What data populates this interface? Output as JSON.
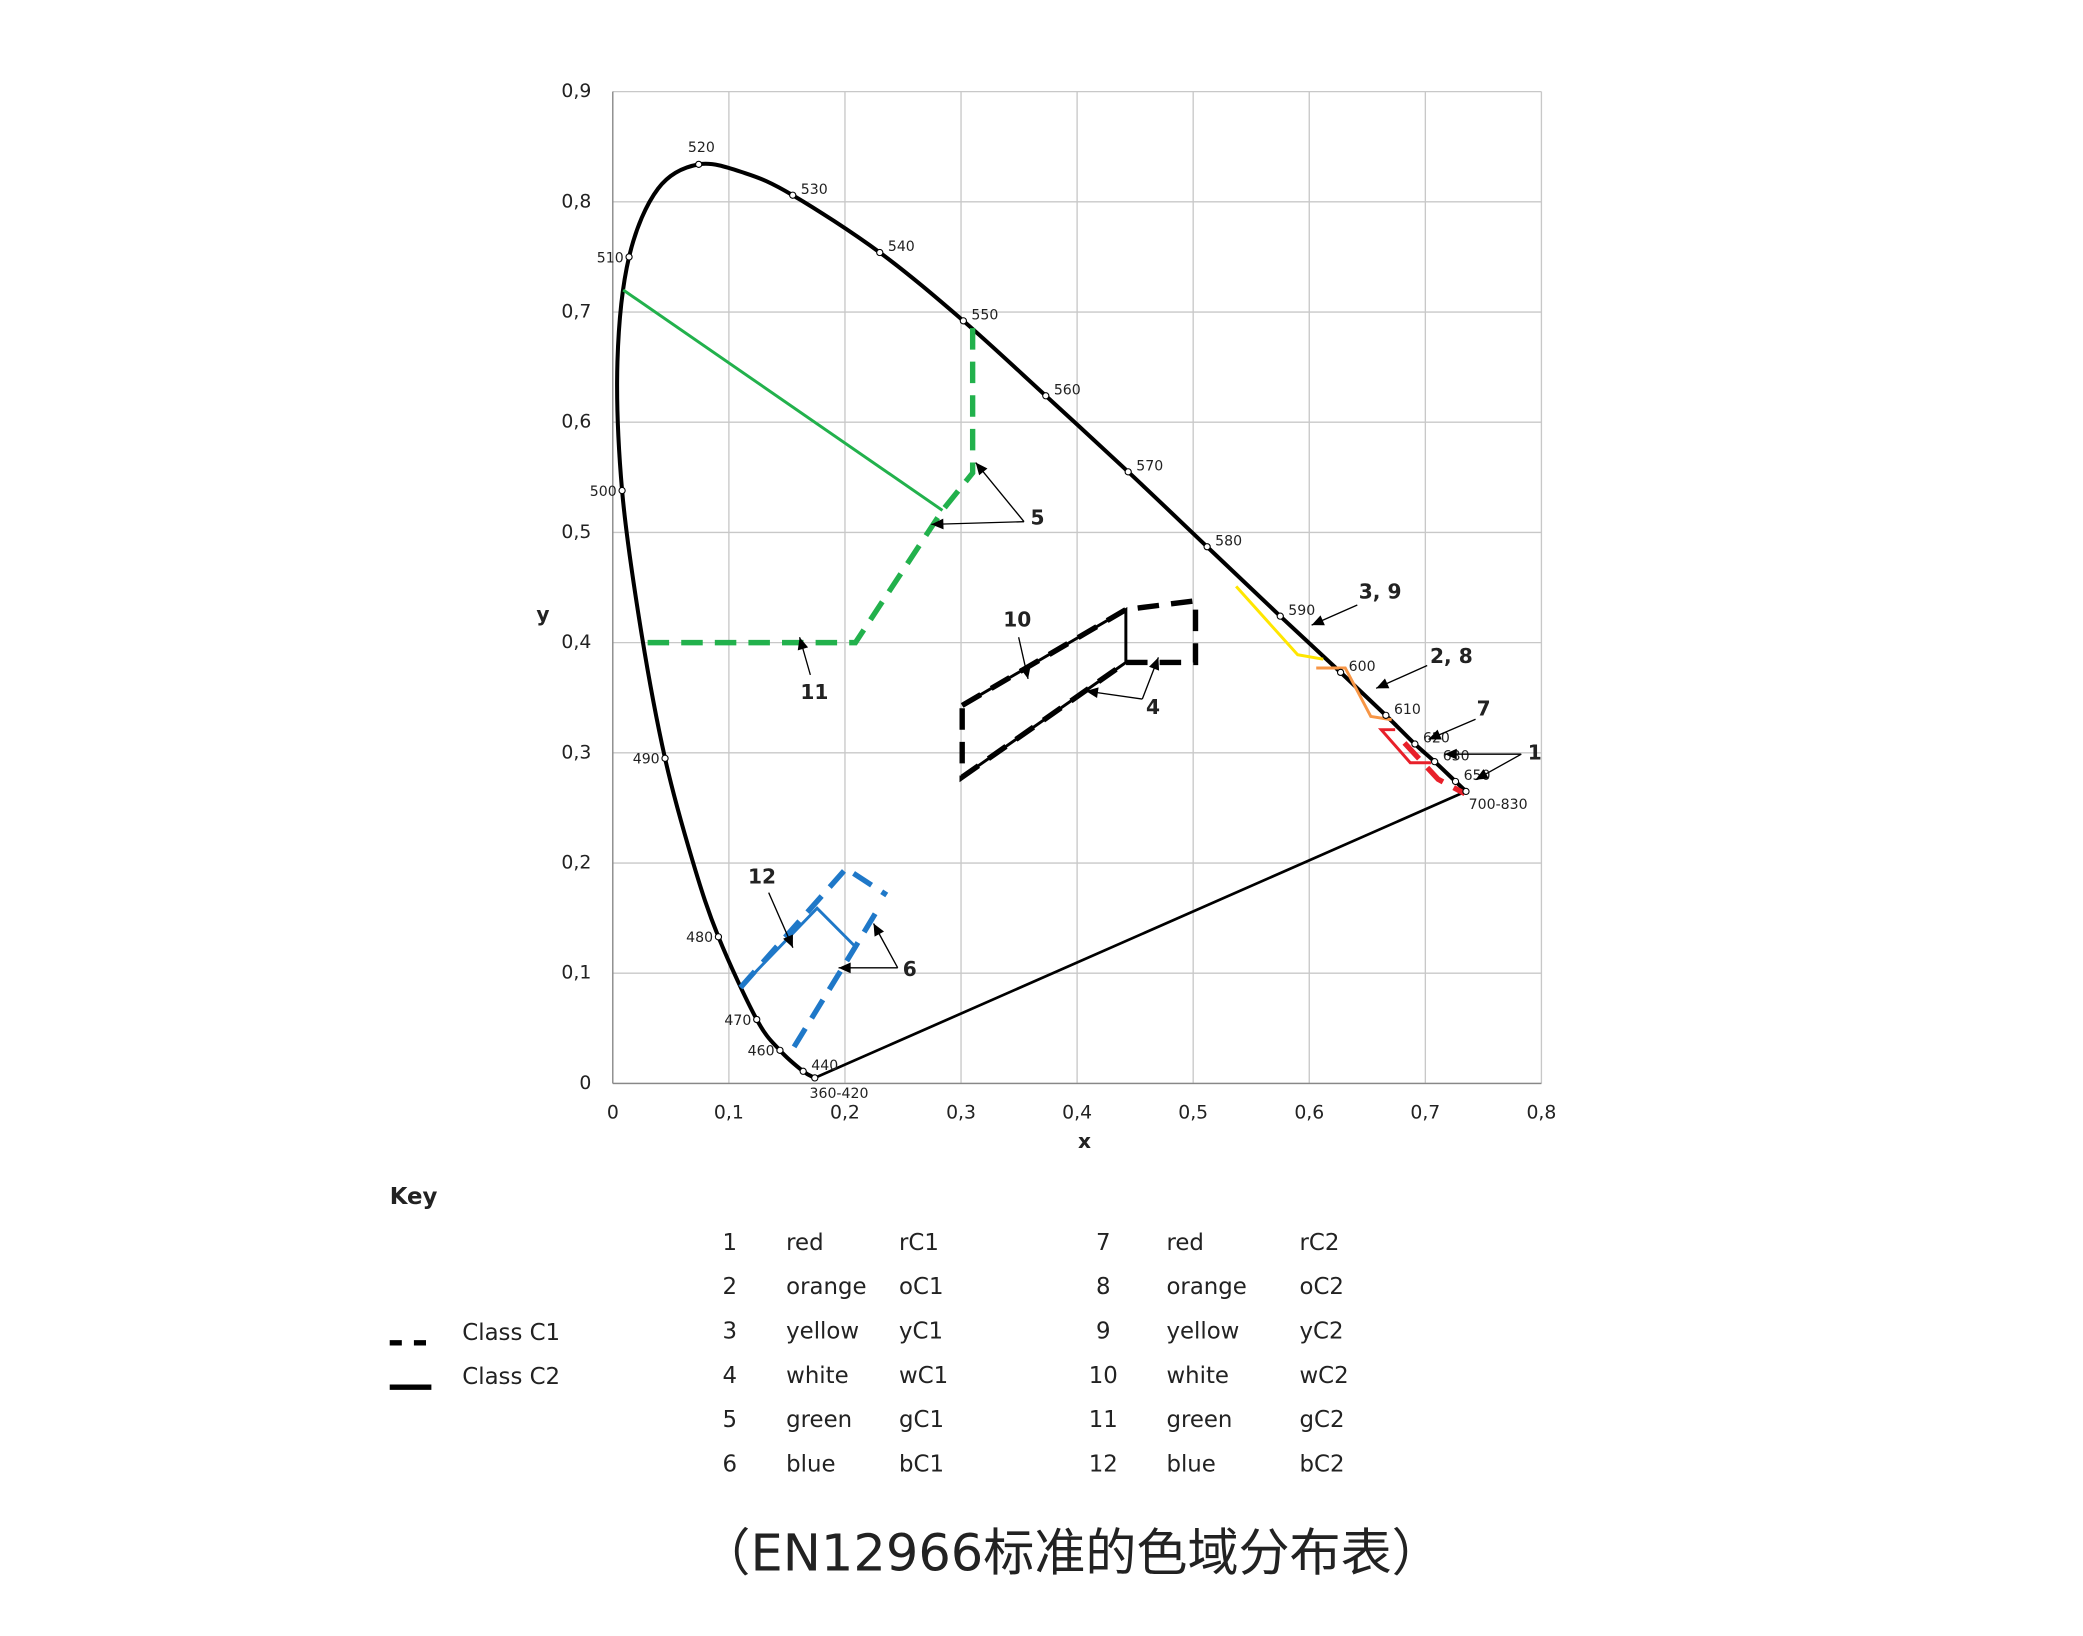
{
  "chart_data": {
    "type": "chromaticity",
    "xlabel": "x",
    "ylabel": "y",
    "xlim": [
      0,
      0.8
    ],
    "ylim": [
      0,
      0.9
    ],
    "xticks": [
      0,
      {
        "value": 0.1,
        "label": "0,1"
      },
      {
        "value": 0.2,
        "label": "0,2"
      },
      {
        "value": 0.3,
        "label": "0,3"
      },
      {
        "value": 0.4,
        "label": "0,4"
      },
      {
        "value": 0.5,
        "label": "0,5"
      },
      {
        "value": 0.6,
        "label": "0,6"
      },
      {
        "value": 0.7,
        "label": "0,7"
      },
      {
        "value": 0.8,
        "label": "0,8"
      }
    ],
    "yticks": [
      0,
      {
        "value": 0.1,
        "label": "0,1"
      },
      {
        "value": 0.2,
        "label": "0,2"
      },
      {
        "value": 0.3,
        "label": "0,3"
      },
      {
        "value": 0.4,
        "label": "0,4"
      },
      {
        "value": 0.5,
        "label": "0,5"
      },
      {
        "value": 0.6,
        "label": "0,6"
      },
      {
        "value": 0.7,
        "label": "0,7"
      },
      {
        "value": 0.8,
        "label": "0,8"
      },
      {
        "value": 0.9,
        "label": "0,9"
      }
    ],
    "grid": true,
    "locus": {
      "color": "#000000",
      "labels": [
        "360-420",
        "440",
        "460",
        "470",
        "480",
        null,
        "490",
        null,
        "500",
        null,
        "510",
        null,
        "520",
        null,
        "530",
        "540",
        "550",
        "560",
        "570",
        "580",
        "590",
        "600",
        "610",
        "620",
        "630",
        "650",
        "700-830"
      ],
      "x": [
        0.174,
        0.164,
        0.144,
        0.124,
        0.091,
        0.069,
        0.045,
        0.024,
        0.008,
        0.004,
        0.014,
        0.039,
        0.074,
        0.114,
        0.155,
        0.23,
        0.302,
        0.373,
        0.444,
        0.512,
        0.575,
        0.627,
        0.666,
        0.691,
        0.708,
        0.726,
        0.735
      ],
      "y": [
        0.005,
        0.011,
        0.03,
        0.058,
        0.133,
        0.201,
        0.295,
        0.413,
        0.538,
        0.655,
        0.75,
        0.812,
        0.834,
        0.826,
        0.806,
        0.754,
        0.692,
        0.624,
        0.555,
        0.487,
        0.424,
        0.373,
        0.334,
        0.308,
        0.292,
        0.274,
        0.265
      ]
    },
    "regions": [
      {
        "color": "#22b14c",
        "style": "dashed",
        "x": [
          0.03,
          0.209,
          0.284,
          0.31,
          0.31
        ],
        "y": [
          0.4,
          0.4,
          0.52,
          0.554,
          0.688
        ]
      },
      {
        "color": "#22b14c",
        "style": "solid",
        "x": [
          0.009,
          0.284
        ],
        "y": [
          0.72,
          0.52
        ]
      },
      {
        "color": "#ffe600",
        "style": "solid",
        "x": [
          0.537,
          0.59,
          0.612
        ],
        "y": [
          0.451,
          0.389,
          0.385
        ]
      },
      {
        "color": "#f79646",
        "style": "solid",
        "x": [
          0.606,
          0.631,
          0.653,
          0.671
        ],
        "y": [
          0.377,
          0.377,
          0.333,
          0.33
        ]
      },
      {
        "color": "#e8202a",
        "style": "solid",
        "x": [
          0.674,
          0.662,
          0.687,
          0.705
        ],
        "y": [
          0.321,
          0.321,
          0.291,
          0.291
        ]
      },
      {
        "color": "#e8202a",
        "style": "dashed",
        "x": [
          0.682,
          0.711,
          0.734
        ],
        "y": [
          0.309,
          0.276,
          0.263
        ]
      },
      {
        "color": "#000000",
        "style": "dashed",
        "x": [
          0.301,
          0.442,
          0.502,
          0.502,
          0.442,
          0.301,
          0.301
        ],
        "y": [
          0.343,
          0.43,
          0.438,
          0.382,
          0.382,
          0.278,
          0.343
        ]
      },
      {
        "color": "#000000",
        "style": "solid",
        "x": [
          0.301,
          0.442,
          0.442,
          0.301
        ],
        "y": [
          0.343,
          0.43,
          0.382,
          0.278
        ]
      },
      {
        "color": "#1f78c8",
        "style": "dashed",
        "x": [
          0.11,
          0.201,
          0.236,
          null,
          0.226,
          0.209,
          0.152
        ],
        "y": [
          0.087,
          0.195,
          0.171,
          null,
          0.154,
          0.124,
          0.026
        ]
      },
      {
        "color": "#1f78c8",
        "style": "solid",
        "x": [
          0.11,
          0.176,
          0.209
        ],
        "y": [
          0.087,
          0.159,
          0.124
        ]
      }
    ],
    "annotations": [
      "1",
      "2, 8",
      "3, 9",
      "4",
      "5",
      "6",
      "7",
      "10",
      "11",
      "12"
    ]
  },
  "key": {
    "title": "Key",
    "legend": [
      {
        "name": "Class C1",
        "style": "dashed"
      },
      {
        "name": "Class C2",
        "style": "solid"
      }
    ],
    "rows": [
      [
        1,
        "red",
        "rC1",
        7,
        "red",
        "rC2"
      ],
      [
        2,
        "orange",
        "oC1",
        8,
        "orange",
        "oC2"
      ],
      [
        3,
        "yellow",
        "yC1",
        9,
        "yellow",
        "yC2"
      ],
      [
        4,
        "white",
        "wC1",
        10,
        "white",
        "wC2"
      ],
      [
        5,
        "green",
        "gC1",
        11,
        "green",
        "gC2"
      ],
      [
        6,
        "blue",
        "bC1",
        12,
        "blue",
        "bC2"
      ]
    ]
  },
  "caption": "（EN12966标准的色域分布表）"
}
